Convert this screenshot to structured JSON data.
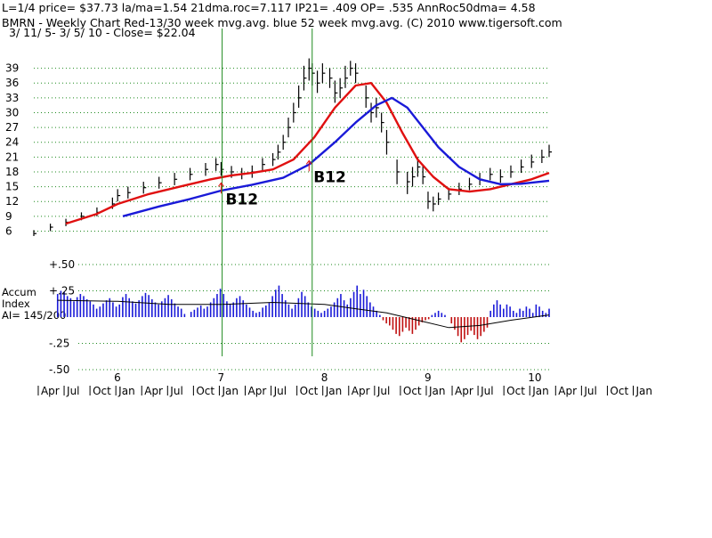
{
  "header": {
    "line1": "L=1/4  price= $37.73  la/ma=1.54 21dma.roc=7.117 IP21= .409 OP= .535 AnnRoc50dma= 4.58",
    "line2": "BMRN  - Weekly Chart  Red-13/30 week mvg.avg.  blue 52 week mvg.avg.  (C) 2010 www.tigersoft.com",
    "line3": " 3/ 11/ 5- 3/ 5/ 10 -     Close= $22.04"
  },
  "side_label": {
    "line1": "Accum",
    "line2": "Index",
    "line3": "AI= 145/200"
  },
  "colors": {
    "price_bar": "#000000",
    "ma_short": "#e01010",
    "ma_long": "#1a1ad8",
    "accum_pos": "#1a1ad8",
    "accum_neg": "#c01010",
    "grid": "#1f8a1f",
    "vertical_marker": "#1f8a1f",
    "accum_avg": "#000000"
  },
  "chart_data": [
    {
      "type": "line",
      "name": "price",
      "x_axis": {
        "year_labels": [
          "6",
          "7",
          "8",
          "9",
          "10"
        ],
        "month_labels": [
          "Apr",
          "Jul",
          "Oct",
          "Jan",
          "Apr",
          "Jul",
          "Oct",
          "Jan",
          "Apr",
          "Jul",
          "Oct",
          "Jan",
          "Apr",
          "Jul",
          "Oct",
          "Jan",
          "Apr",
          "Jul",
          "Oct",
          "Jan",
          "Apr",
          "Jul",
          "Oct",
          "Jan"
        ],
        "x_start": 2005.19,
        "x_end": 2010.17
      },
      "ylim": [
        5,
        42
      ],
      "y_tick_labels": [
        "39",
        "36",
        "33",
        "30",
        "27",
        "24",
        "21",
        "18",
        "15",
        "12",
        "9",
        "6"
      ],
      "grid": true,
      "series": [
        {
          "style": "ohlc_bars",
          "t": [
            2005.19,
            2005.35,
            2005.5,
            2005.65,
            2005.8,
            2005.95,
            2006.0,
            2006.1,
            2006.25,
            2006.4,
            2006.55,
            2006.7,
            2006.85,
            2006.95,
            2007.0,
            2007.1,
            2007.2,
            2007.3,
            2007.4,
            2007.5,
            2007.55,
            2007.6,
            2007.65,
            2007.7,
            2007.75,
            2007.8,
            2007.85,
            2007.88,
            2007.93,
            2007.98,
            2008.05,
            2008.1,
            2008.15,
            2008.2,
            2008.25,
            2008.3,
            2008.4,
            2008.45,
            2008.5,
            2008.55,
            2008.6,
            2008.7,
            2008.8,
            2008.85,
            2008.9,
            2008.95,
            2009.0,
            2009.05,
            2009.1,
            2009.2,
            2009.3,
            2009.4,
            2009.5,
            2009.6,
            2009.7,
            2009.8,
            2009.9,
            2010.0,
            2010.1,
            2010.17
          ],
          "close": [
            5.5,
            6.8,
            7.8,
            9.0,
            9.8,
            11.5,
            13.2,
            13.8,
            14.8,
            15.8,
            16.5,
            17.5,
            18.5,
            19.5,
            18.5,
            18.0,
            17.5,
            18.0,
            19.5,
            20.5,
            22.0,
            24.0,
            27.0,
            30.0,
            33.0,
            37.0,
            39.0,
            38.0,
            36.0,
            38.0,
            37.0,
            34.0,
            35.0,
            37.0,
            39.0,
            38.0,
            33.0,
            30.0,
            31.0,
            28.0,
            24.0,
            18.0,
            16.0,
            17.0,
            19.0,
            17.0,
            12.0,
            11.5,
            12.5,
            13.5,
            14.5,
            15.5,
            16.5,
            17.5,
            17.0,
            18.0,
            19.0,
            20.0,
            21.0,
            22.04
          ],
          "high": [
            6.2,
            7.5,
            8.5,
            9.8,
            10.8,
            12.8,
            14.5,
            15.0,
            16.0,
            17.0,
            17.8,
            18.8,
            19.8,
            20.8,
            20.0,
            19.2,
            18.8,
            19.3,
            20.8,
            21.8,
            23.5,
            25.5,
            29.0,
            32.0,
            35.5,
            39.5,
            41.0,
            40.0,
            38.5,
            40.0,
            39.0,
            36.5,
            37.0,
            39.5,
            40.5,
            40.0,
            35.5,
            32.0,
            33.0,
            30.0,
            26.5,
            20.5,
            18.0,
            19.0,
            21.0,
            19.5,
            14.0,
            13.0,
            13.8,
            14.8,
            15.8,
            16.8,
            17.8,
            18.8,
            18.5,
            19.3,
            20.5,
            21.5,
            22.5,
            23.5
          ],
          "low": [
            5.0,
            6.0,
            7.0,
            8.2,
            9.0,
            10.5,
            12.0,
            12.6,
            13.6,
            14.6,
            15.3,
            16.3,
            17.2,
            18.2,
            17.2,
            16.8,
            16.5,
            16.8,
            18.3,
            19.2,
            20.5,
            22.5,
            25.0,
            28.0,
            31.0,
            34.5,
            36.5,
            35.5,
            34.0,
            36.0,
            35.0,
            32.0,
            33.0,
            35.0,
            37.5,
            36.0,
            31.0,
            28.0,
            29.0,
            26.0,
            21.5,
            15.5,
            13.5,
            15.0,
            17.0,
            15.5,
            10.5,
            10.0,
            11.3,
            12.3,
            13.3,
            14.3,
            15.3,
            16.3,
            15.8,
            16.8,
            17.8,
            18.8,
            19.8,
            21.0
          ]
        },
        {
          "name": "Red-13/30 week mvg.avg.",
          "color": "#e01010",
          "t": [
            2005.5,
            2005.8,
            2006.0,
            2006.3,
            2006.6,
            2006.9,
            2007.1,
            2007.3,
            2007.5,
            2007.7,
            2007.9,
            2008.1,
            2008.3,
            2008.45,
            2008.6,
            2008.75,
            2008.9,
            2009.05,
            2009.2,
            2009.4,
            2009.6,
            2009.8,
            2010.0,
            2010.17
          ],
          "values": [
            7.5,
            9.5,
            11.5,
            13.5,
            15.0,
            16.5,
            17.3,
            17.8,
            18.5,
            20.5,
            25.0,
            31.0,
            35.5,
            36.0,
            32.0,
            26.0,
            20.5,
            17.0,
            14.5,
            14.0,
            14.5,
            15.5,
            16.5,
            17.8
          ]
        },
        {
          "name": "blue 52 week mvg.avg.",
          "color": "#1a1ad8",
          "t": [
            2006.05,
            2006.4,
            2006.7,
            2007.0,
            2007.3,
            2007.6,
            2007.85,
            2008.1,
            2008.3,
            2008.5,
            2008.65,
            2008.8,
            2008.95,
            2009.1,
            2009.3,
            2009.5,
            2009.7,
            2009.9,
            2010.17
          ],
          "values": [
            9.0,
            11.0,
            12.5,
            14.2,
            15.4,
            16.8,
            19.5,
            24.0,
            28.0,
            31.5,
            33.0,
            31.0,
            27.0,
            23.0,
            19.0,
            16.5,
            15.5,
            15.6,
            16.2
          ]
        }
      ],
      "annotations": [
        {
          "label": "B12",
          "t": 2007.0,
          "value": 16.5
        },
        {
          "label": "B12",
          "t": 2007.85,
          "value": 21.0
        }
      ],
      "vertical_markers_t": [
        2007.01,
        2007.88
      ]
    },
    {
      "type": "bar",
      "name": "Accum Index",
      "ylim": [
        -0.5,
        0.5
      ],
      "y_tick_labels": [
        "+.50",
        "+.25",
        "-.25",
        "-.50"
      ],
      "grid": true,
      "t_start": 2005.42,
      "t_end": 2010.17,
      "values": [
        0.22,
        0.25,
        0.24,
        0.2,
        0.18,
        0.15,
        0.19,
        0.22,
        0.2,
        0.17,
        0.15,
        0.12,
        0.08,
        0.1,
        0.13,
        0.16,
        0.18,
        0.14,
        0.1,
        0.12,
        0.19,
        0.22,
        0.18,
        0.15,
        0.13,
        0.16,
        0.2,
        0.23,
        0.21,
        0.17,
        0.14,
        0.12,
        0.15,
        0.18,
        0.21,
        0.17,
        0.13,
        0.1,
        0.08,
        0.03,
        0.0,
        0.05,
        0.07,
        0.09,
        0.11,
        0.08,
        0.1,
        0.14,
        0.18,
        0.22,
        0.27,
        0.22,
        0.15,
        0.12,
        0.14,
        0.18,
        0.2,
        0.16,
        0.12,
        0.09,
        0.06,
        0.04,
        0.05,
        0.09,
        0.11,
        0.14,
        0.2,
        0.26,
        0.3,
        0.22,
        0.16,
        0.12,
        0.08,
        0.12,
        0.18,
        0.24,
        0.2,
        0.14,
        0.1,
        0.08,
        0.06,
        0.04,
        0.06,
        0.08,
        0.1,
        0.14,
        0.18,
        0.22,
        0.16,
        0.12,
        0.18,
        0.24,
        0.3,
        0.22,
        0.26,
        0.2,
        0.14,
        0.1,
        0.06,
        0.02,
        -0.03,
        -0.06,
        -0.08,
        -0.12,
        -0.16,
        -0.18,
        -0.14,
        -0.1,
        -0.13,
        -0.16,
        -0.12,
        -0.08,
        -0.05,
        -0.03,
        -0.02,
        0.02,
        0.04,
        0.06,
        0.04,
        0.02,
        0.0,
        -0.06,
        -0.12,
        -0.18,
        -0.24,
        -0.21,
        -0.17,
        -0.13,
        -0.17,
        -0.21,
        -0.18,
        -0.14,
        -0.1,
        0.06,
        0.12,
        0.16,
        0.12,
        0.08,
        0.12,
        0.1,
        0.06,
        0.04,
        0.08,
        0.06,
        0.1,
        0.08,
        0.04,
        0.12,
        0.1,
        0.06,
        0.04,
        0.08
      ],
      "avg_line": {
        "t": [
          2005.42,
          2006.0,
          2006.5,
          2007.0,
          2007.5,
          2008.0,
          2008.3,
          2008.6,
          2008.9,
          2009.2,
          2009.5,
          2009.8,
          2010.17
        ],
        "values": [
          0.16,
          0.15,
          0.12,
          0.12,
          0.14,
          0.12,
          0.08,
          0.04,
          -0.03,
          -0.1,
          -0.08,
          -0.03,
          0.02
        ]
      }
    }
  ]
}
